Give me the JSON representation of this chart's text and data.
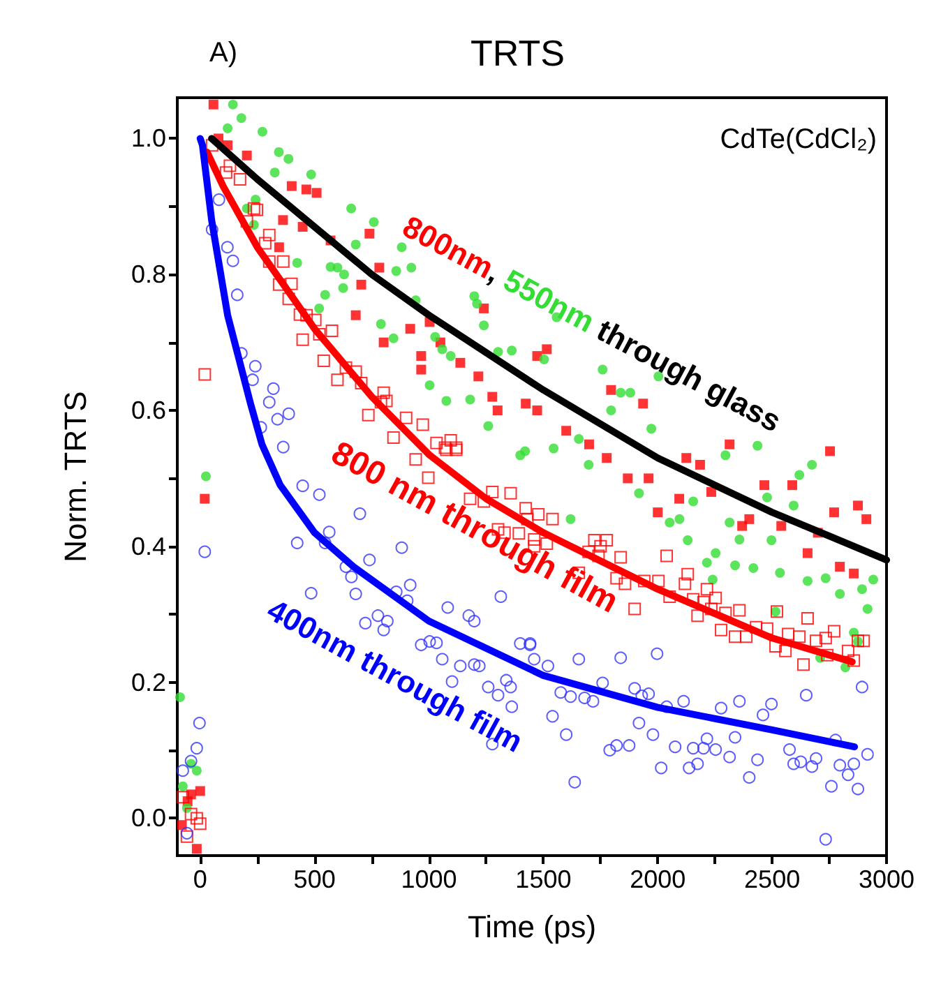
{
  "chart_data": {
    "type": "scatter",
    "title": "TRTS",
    "xlabel": "Time (ps)",
    "ylabel": "Norm. TRTS",
    "annotations": [
      "A)",
      "CdTe(CdCl₂)",
      "800nm",
      ",",
      "550nm",
      "through glass",
      "800 nm through film",
      "400nm through film"
    ],
    "xlim": [
      -100,
      3000
    ],
    "xticks": [
      0,
      {
        "value": 250,
        "label": null
      },
      500,
      {
        "value": 750,
        "label": null
      },
      1000,
      {
        "value": 1250,
        "label": null
      },
      1500,
      {
        "value": 1750,
        "label": null
      },
      2000,
      {
        "value": 2250,
        "label": null
      },
      2500,
      {
        "value": 2750,
        "label": null
      },
      3000
    ],
    "ylim": [
      -0.055,
      1.06
    ],
    "yticks": [
      {
        "value": 0,
        "label": "0.0"
      },
      {
        "value": 0.1,
        "label": null
      },
      0.2,
      {
        "value": 0.3,
        "label": null
      },
      0.4,
      {
        "value": 0.5,
        "label": null
      },
      0.6,
      {
        "value": 0.7,
        "label": null
      },
      0.8,
      {
        "value": 0.9,
        "label": null
      },
      {
        "value": 1,
        "label": "1.0"
      }
    ],
    "grid": false,
    "series": [
      {
        "marker": "square",
        "color": "#ff0000",
        "x": [
          -80,
          -55,
          -40,
          -15,
          0,
          20,
          58,
          80,
          120,
          204,
          345,
          362,
          400,
          448,
          464,
          509,
          570,
          680,
          704,
          740,
          783,
          802,
          918,
          966,
          966,
          1003,
          1050,
          1137,
          1216,
          1240,
          1277,
          1300,
          1423,
          1473,
          1473,
          1515,
          1600,
          1700,
          1777,
          1796,
          1869,
          1936,
          1960,
          2000,
          2094,
          2125,
          2185,
          2234,
          2314,
          2369,
          2400,
          2466,
          2540,
          2588,
          2655,
          2700,
          2753,
          2771,
          2796,
          2857,
          2875,
          2912
        ],
        "values": [
          -0.01,
          0.025,
          0.035,
          -0.045,
          0.04,
          0.47,
          1.05,
          1.0,
          0.99,
          0.975,
          0.84,
          0.88,
          0.93,
          0.87,
          0.925,
          0.92,
          0.85,
          0.74,
          0.785,
          0.86,
          0.81,
          0.7,
          0.72,
          0.68,
          0.66,
          0.73,
          0.7,
          0.67,
          0.65,
          0.75,
          0.62,
          0.6,
          0.61,
          0.6,
          0.68,
          0.69,
          0.57,
          0.55,
          0.53,
          0.63,
          0.5,
          0.61,
          0.5,
          0.45,
          0.47,
          0.53,
          0.52,
          0.48,
          0.55,
          0.43,
          0.44,
          0.49,
          0.43,
          0.49,
          0.39,
          0.42,
          0.54,
          0.45,
          0.37,
          0.36,
          0.46,
          0.44
        ]
      },
      {
        "marker": "circle",
        "color": "#33dd33",
        "x": [
          -88,
          -76,
          -58,
          -40,
          -15,
          25,
          120,
          143,
          180,
          204,
          235,
          242,
          272,
          326,
          344,
          386,
          424,
          485,
          520,
          546,
          570,
          600,
          625,
          629,
          660,
          680,
          759,
          790,
          845,
          857,
          881,
          923,
          942,
          1003,
          1027,
          1058,
          1076,
          1095,
          1180,
          1198,
          1210,
          1240,
          1259,
          1302,
          1362,
          1399,
          1420,
          1503,
          1545,
          1558,
          1619,
          1655,
          1698,
          1759,
          1796,
          1838,
          1880,
          1918,
          1972,
          2003,
          2052,
          2095,
          2131,
          2155,
          2215,
          2240,
          2253,
          2296,
          2314,
          2338,
          2357,
          2418,
          2436,
          2478,
          2497,
          2515,
          2534,
          2594,
          2619,
          2655,
          2674,
          2710,
          2734,
          2796,
          2820,
          2857,
          2875,
          2893,
          2917,
          2942
        ],
        "values": [
          0.178,
          0.047,
          0.015,
          0.08,
          0.07,
          0.503,
          1.015,
          1.05,
          1.03,
          0.897,
          0.873,
          0.91,
          1.01,
          0.95,
          0.98,
          0.97,
          0.817,
          0.947,
          0.75,
          0.77,
          0.811,
          0.81,
          0.78,
          0.8,
          0.897,
          0.844,
          0.877,
          0.727,
          0.706,
          0.805,
          0.84,
          0.81,
          0.762,
          0.637,
          0.708,
          0.69,
          0.614,
          0.68,
          0.616,
          0.768,
          0.757,
          0.725,
          0.577,
          0.686,
          0.688,
          0.534,
          0.54,
          0.675,
          0.544,
          0.737,
          0.44,
          0.558,
          0.52,
          0.66,
          0.6,
          0.626,
          0.626,
          0.478,
          0.573,
          0.65,
          0.435,
          0.44,
          0.409,
          0.466,
          0.376,
          0.351,
          0.39,
          0.534,
          0.435,
          0.372,
          0.41,
          0.368,
          0.548,
          0.472,
          0.409,
          0.304,
          0.361,
          0.46,
          0.505,
          0.349,
          0.52,
          0.236,
          0.353,
          0.33,
          0.222,
          0.273,
          0.26,
          0.337,
          0.308,
          0.351
        ]
      },
      {
        "marker": "square",
        "color": "#ff0000",
        "x": [
          -76,
          -58,
          -40,
          -15,
          0,
          20,
          52,
          113,
          130,
          174,
          204,
          235,
          248,
          284,
          302,
          302,
          345,
          363,
          387,
          399,
          436,
          448,
          465,
          503,
          521,
          540,
          576,
          600,
          637,
          680,
          704,
          735,
          790,
          802,
          814,
          845,
          900,
          942,
          973,
          997,
          1033,
          1070,
          1076,
          1095,
          1119,
          1119,
          1180,
          1240,
          1277,
          1302,
          1330,
          1357,
          1393,
          1423,
          1430,
          1460,
          1460,
          1478,
          1515,
          1540,
          1655,
          1698,
          1723,
          1741,
          1750,
          1777,
          1820,
          1838,
          1857,
          1899,
          1941,
          2003,
          2039,
          2052,
          2119,
          2131,
          2155,
          2174,
          2200,
          2215,
          2234,
          2253,
          2277,
          2296,
          2338,
          2357,
          2387,
          2430,
          2478,
          2515,
          2521,
          2558,
          2570,
          2619,
          2637,
          2655,
          2692,
          2734,
          2741,
          2771,
          2832,
          2857,
          2875,
          2900
        ],
        "values": [
          0.031,
          -0.027,
          0.006,
          0.0,
          -0.008,
          0.653,
          0.99,
          0.95,
          0.96,
          0.94,
          0.878,
          0.897,
          0.895,
          0.846,
          0.858,
          0.819,
          0.785,
          0.819,
          0.764,
          0.786,
          0.741,
          0.704,
          0.74,
          0.733,
          0.712,
          0.673,
          0.717,
          0.645,
          0.663,
          0.657,
          0.64,
          0.593,
          0.612,
          0.626,
          0.614,
          0.56,
          0.589,
          0.528,
          0.579,
          0.501,
          0.552,
          0.545,
          0.542,
          0.556,
          0.545,
          0.542,
          0.47,
          0.466,
          0.48,
          0.425,
          0.42,
          0.478,
          0.419,
          0.456,
          0.44,
          0.4,
          0.41,
          0.447,
          0.404,
          0.44,
          0.361,
          0.392,
          0.409,
          0.386,
          0.4,
          0.409,
          0.353,
          0.384,
          0.345,
          0.308,
          0.349,
          0.349,
          0.386,
          0.326,
          0.345,
          0.359,
          0.322,
          0.298,
          0.318,
          0.337,
          0.308,
          0.324,
          0.277,
          0.302,
          0.267,
          0.306,
          0.267,
          0.281,
          0.279,
          0.253,
          0.304,
          0.246,
          0.271,
          0.267,
          0.226,
          0.294,
          0.261,
          0.265,
          0.24,
          0.275,
          0.246,
          0.232,
          0.261,
          0.261
        ]
      },
      {
        "marker": "circle",
        "color": "#3333ff",
        "x": [
          -76,
          -58,
          -40,
          -15,
          -3,
          20,
          52,
          82,
          119,
          143,
          162,
          180,
          229,
          241,
          265,
          302,
          320,
          338,
          363,
          387,
          424,
          448,
          485,
          521,
          546,
          564,
          637,
          661,
          680,
          698,
          722,
          740,
          777,
          802,
          818,
          857,
          881,
          905,
          918,
          966,
          1003,
          1033,
          1058,
          1082,
          1101,
          1137,
          1174,
          1198,
          1198,
          1220,
          1259,
          1277,
          1302,
          1314,
          1338,
          1357,
          1362,
          1399,
          1442,
          1442,
          1460,
          1520,
          1540,
          1576,
          1600,
          1619,
          1637,
          1655,
          1680,
          1717,
          1759,
          1790,
          1820,
          1838,
          1875,
          1899,
          1918,
          1930,
          1960,
          1979,
          1997,
          2015,
          2039,
          2076,
          2113,
          2137,
          2155,
          2174,
          2200,
          2215,
          2253,
          2277,
          2314,
          2338,
          2357,
          2400,
          2436,
          2460,
          2497,
          2576,
          2594,
          2625,
          2649,
          2674,
          2692,
          2734,
          2759,
          2777,
          2796,
          2832,
          2857,
          2875,
          2893,
          2917
        ],
        "values": [
          0.07,
          -0.022,
          0.084,
          0.103,
          0.14,
          0.392,
          0.866,
          0.91,
          0.84,
          0.82,
          0.77,
          0.684,
          0.645,
          0.665,
          0.575,
          0.612,
          0.632,
          0.587,
          0.546,
          0.595,
          0.405,
          0.489,
          0.331,
          0.476,
          0.405,
          0.421,
          0.37,
          0.355,
          0.33,
          0.448,
          0.287,
          0.38,
          0.298,
          0.277,
          0.29,
          0.333,
          0.398,
          0.32,
          0.343,
          0.255,
          0.26,
          0.258,
          0.234,
          0.31,
          0.201,
          0.224,
          0.298,
          0.29,
          0.226,
          0.224,
          0.193,
          0.109,
          0.181,
          0.326,
          0.203,
          0.193,
          0.164,
          0.257,
          0.257,
          0.255,
          0.234,
          0.224,
          0.15,
          0.185,
          0.123,
          0.179,
          0.053,
          0.234,
          0.177,
          0.172,
          0.199,
          0.1,
          0.107,
          0.236,
          0.107,
          0.191,
          0.14,
          0.18,
          0.183,
          0.123,
          0.242,
          0.074,
          0.164,
          0.105,
          0.172,
          0.074,
          0.103,
          0.08,
          0.103,
          0.117,
          0.101,
          0.162,
          0.09,
          0.119,
          0.172,
          0.06,
          0.086,
          0.152,
          0.168,
          0.101,
          0.08,
          0.083,
          0.181,
          0.076,
          0.088,
          -0.031,
          0.047,
          0.115,
          0.078,
          0.064,
          0.08,
          0.043,
          0.193,
          0.094
        ]
      },
      {
        "type": "line",
        "marker": "none",
        "line_style": "solid",
        "color": "#000000",
        "x": [
          50,
          250,
          500,
          750,
          1000,
          1250,
          1500,
          1750,
          2000,
          2250,
          2500,
          2750,
          3000
        ],
        "values": [
          1.0,
          0.94,
          0.87,
          0.8,
          0.74,
          0.685,
          0.63,
          0.58,
          0.53,
          0.49,
          0.45,
          0.415,
          0.38
        ]
      },
      {
        "type": "line",
        "marker": "none",
        "line_style": "solid",
        "color": "#ff0000",
        "x": [
          30,
          100,
          250,
          500,
          750,
          1000,
          1250,
          1500,
          2000,
          2500,
          2850
        ],
        "values": [
          0.98,
          0.93,
          0.84,
          0.72,
          0.62,
          0.535,
          0.47,
          0.42,
          0.337,
          0.265,
          0.23
        ]
      },
      {
        "type": "line",
        "marker": "none",
        "line_style": "solid",
        "color": "#0000ff",
        "x": [
          0,
          10,
          50,
          120,
          220,
          270,
          350,
          500,
          670,
          1000,
          1500,
          2000,
          2500,
          2860
        ],
        "values": [
          1.0,
          0.99,
          0.88,
          0.74,
          0.61,
          0.55,
          0.49,
          0.42,
          0.37,
          0.29,
          0.21,
          0.163,
          0.13,
          0.105
        ]
      }
    ]
  }
}
